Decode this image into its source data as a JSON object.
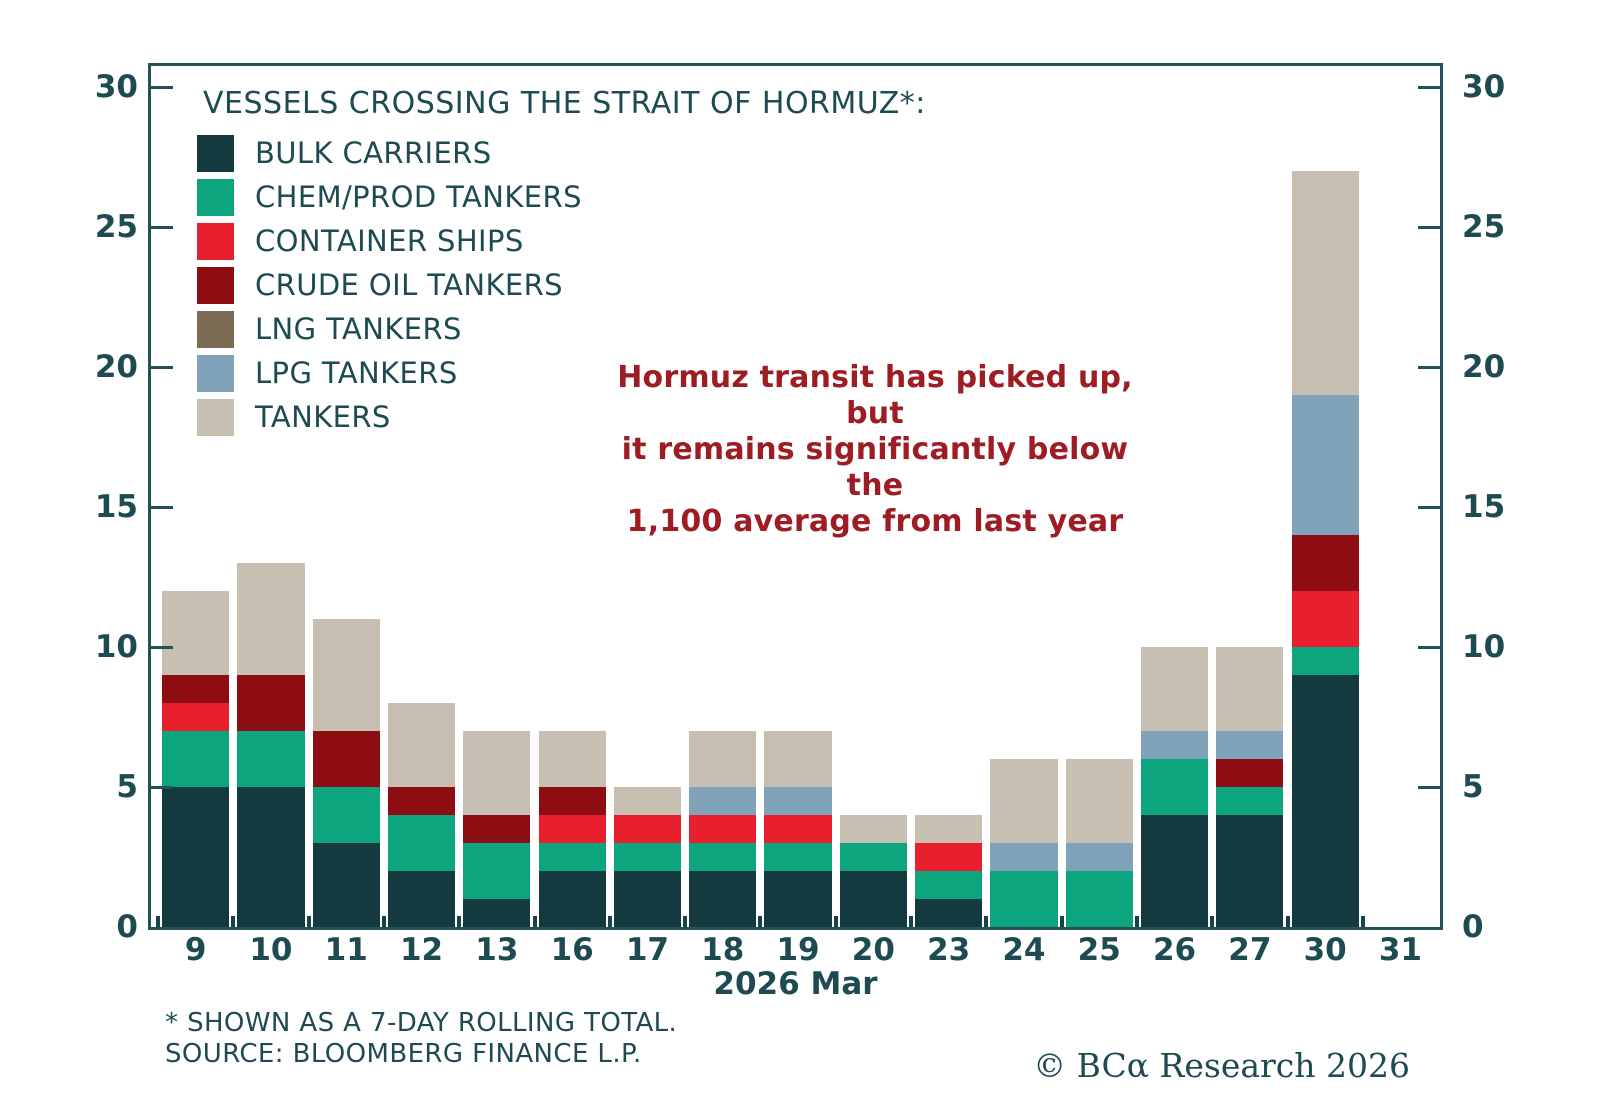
{
  "chart_data": {
    "type": "bar",
    "stacked": true,
    "title": "VESSELS CROSSING THE STRAIT OF HORMUZ*:",
    "categories": [
      "9",
      "10",
      "11",
      "12",
      "13",
      "16",
      "17",
      "18",
      "19",
      "20",
      "23",
      "24",
      "25",
      "26",
      "27",
      "30",
      "31"
    ],
    "xlabel": "2026 Mar",
    "ylim": [
      0,
      30
    ],
    "yticks": [
      0,
      5,
      10,
      15,
      20,
      25,
      30
    ],
    "grid": false,
    "legend_position": "inside-top-left",
    "series": [
      {
        "name": "BULK CARRIERS",
        "color": "#143a40",
        "values": [
          5,
          5,
          3,
          2,
          1,
          2,
          2,
          2,
          2,
          2,
          1,
          0,
          0,
          4,
          4,
          9,
          0
        ]
      },
      {
        "name": "CHEM/PROD TANKERS",
        "color": "#0da57d",
        "values": [
          2,
          2,
          2,
          2,
          2,
          1,
          1,
          1,
          1,
          1,
          1,
          2,
          2,
          2,
          1,
          1,
          0
        ]
      },
      {
        "name": "CONTAINER SHIPS",
        "color": "#e8202e",
        "values": [
          1,
          0,
          0,
          0,
          0,
          1,
          1,
          1,
          1,
          0,
          1,
          0,
          0,
          0,
          0,
          2,
          0
        ]
      },
      {
        "name": "CRUDE OIL TANKERS",
        "color": "#8e0d13",
        "values": [
          1,
          2,
          2,
          1,
          1,
          1,
          0,
          0,
          0,
          0,
          0,
          0,
          0,
          0,
          1,
          2,
          0
        ]
      },
      {
        "name": "LNG TANKERS",
        "color": "#7c6b55",
        "values": [
          0,
          0,
          0,
          0,
          0,
          0,
          0,
          0,
          0,
          0,
          0,
          0,
          0,
          0,
          0,
          0,
          0
        ]
      },
      {
        "name": "LPG TANKERS",
        "color": "#80a3ba",
        "values": [
          0,
          0,
          0,
          0,
          0,
          0,
          0,
          1,
          1,
          0,
          0,
          1,
          1,
          1,
          1,
          5,
          0
        ]
      },
      {
        "name": "TANKERS",
        "color": "#c7c0b2",
        "values": [
          3,
          4,
          4,
          3,
          3,
          2,
          1,
          2,
          2,
          1,
          1,
          3,
          3,
          3,
          3,
          8,
          0
        ]
      }
    ],
    "totals": [
      12,
      13,
      11,
      8,
      7,
      7,
      5,
      7,
      7,
      4,
      4,
      6,
      6,
      10,
      10,
      27,
      0
    ],
    "annotation": {
      "lines": [
        "Hormuz transit has picked up, but",
        "it remains significantly below the",
        "1,100 average from last year"
      ],
      "color": "#9e1c24"
    }
  },
  "footnotes": [
    "* SHOWN AS A 7-DAY ROLLING TOTAL.",
    "SOURCE: BLOOMBERG FINANCE L.P."
  ],
  "branding": "© BCα Research 2026",
  "colors": {
    "text": "#1e4b52",
    "axis": "#235156",
    "annotation": "#9e1c24",
    "background": "#ffffff"
  }
}
